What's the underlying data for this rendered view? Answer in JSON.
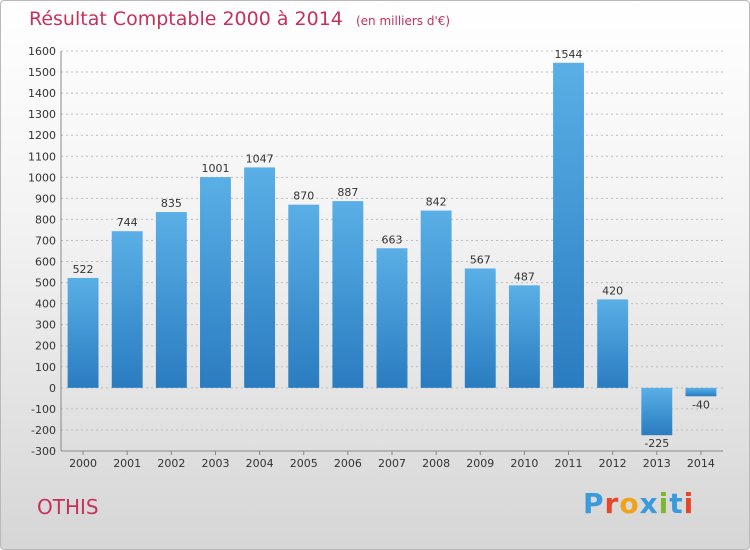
{
  "header": {
    "title": "Résultat Comptable 2000 à 2014",
    "unit": "(en milliers d'€)"
  },
  "footer": {
    "commune": "OTHIS",
    "brand": "Proxiti",
    "brand_colors": [
      "#3a9bdc",
      "#e8462a",
      "#f0a21a",
      "#3a9bdc",
      "#7cb82f",
      "#3a9bdc",
      "#e8462a"
    ]
  },
  "colors": {
    "title": "#c8305a",
    "bar_top": "#5aafe6",
    "bar_bottom": "#2a7cc0",
    "grid": "#bdbdbd"
  },
  "chart_data": {
    "type": "bar",
    "categories": [
      "2000",
      "2001",
      "2002",
      "2003",
      "2004",
      "2005",
      "2006",
      "2007",
      "2008",
      "2009",
      "2010",
      "2011",
      "2012",
      "2013",
      "2014"
    ],
    "values": [
      522,
      744,
      835,
      1001,
      1047,
      870,
      887,
      663,
      842,
      567,
      487,
      1544,
      420,
      -225,
      -40
    ],
    "title": "Résultat Comptable 2000 à 2014",
    "ylim": [
      -300,
      1600
    ],
    "yticks": [
      -300,
      -200,
      -100,
      0,
      100,
      200,
      300,
      400,
      500,
      600,
      700,
      800,
      900,
      1000,
      1100,
      1200,
      1300,
      1400,
      1500,
      1600
    ],
    "grid": true
  }
}
